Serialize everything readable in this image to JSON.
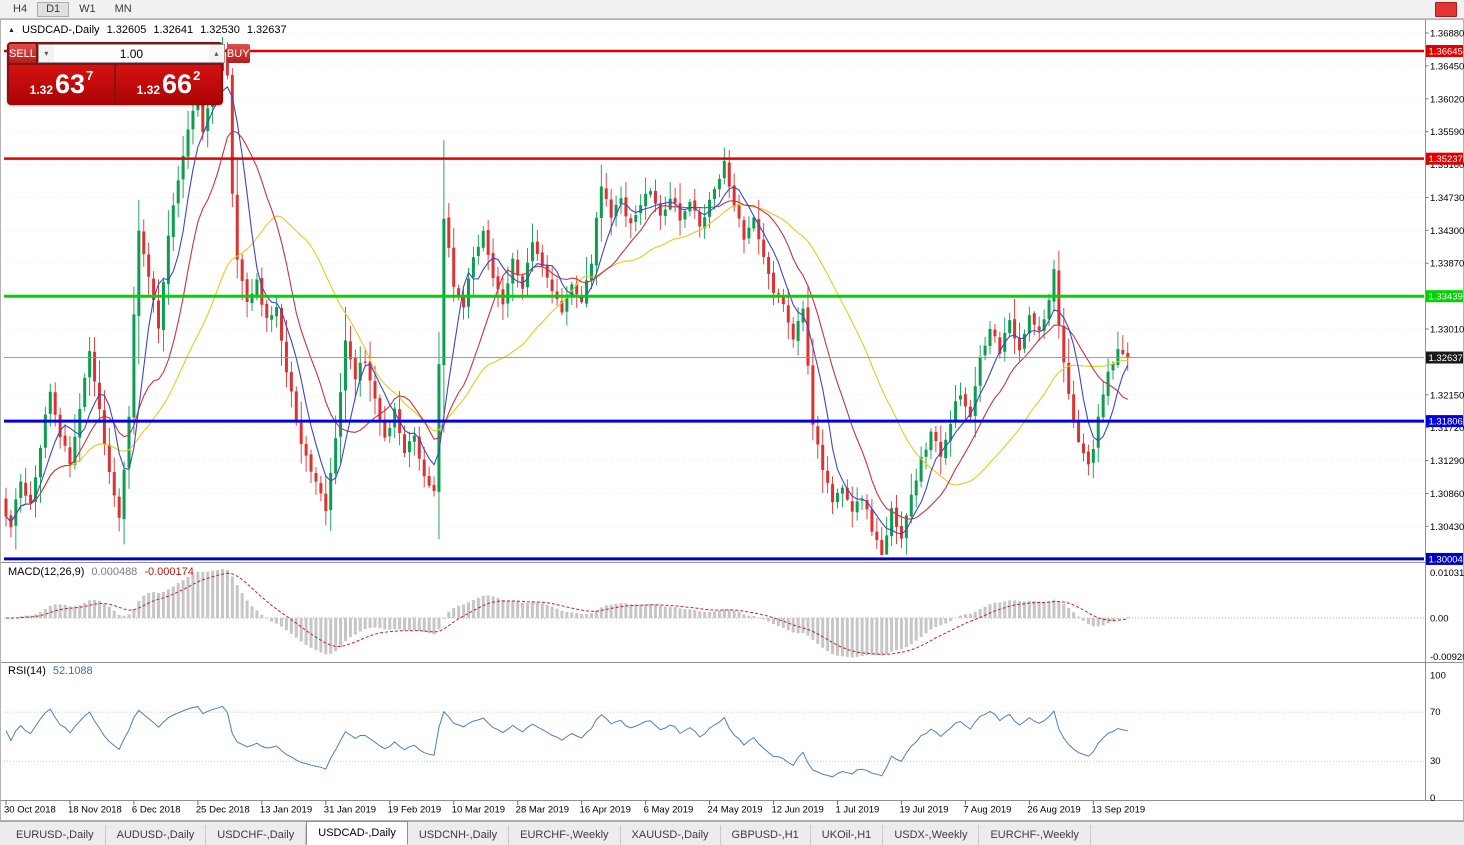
{
  "toolbar": {
    "timeframes": [
      "H4",
      "D1",
      "W1",
      "MN"
    ],
    "active": "D1"
  },
  "quote_header": {
    "symbol": "USDCAD-,Daily",
    "open": "1.32605",
    "high": "1.32641",
    "low": "1.32530",
    "close": "1.32637"
  },
  "trade_panel": {
    "sell_label": "SELL",
    "buy_label": "BUY",
    "volume": "1.00",
    "sell_price": {
      "prefix": "1.32",
      "big": "63",
      "sup": "7"
    },
    "buy_price": {
      "prefix": "1.32",
      "big": "66",
      "sup": "2"
    }
  },
  "macd_panel": {
    "label": "MACD(12,26,9)",
    "main_value": "0.000488",
    "signal_value": "-0.000174",
    "axis_labels": [
      "0.010311",
      "0.00",
      "-0.009203"
    ],
    "params": {
      "fast": 12,
      "slow": 26,
      "signal": 9
    }
  },
  "rsi_panel": {
    "label": "RSI(14)",
    "value": "52.1088",
    "period": 14,
    "axis_labels": [
      "100",
      "70",
      "30",
      "0"
    ],
    "levels": [
      70,
      30
    ]
  },
  "tabs": {
    "items": [
      "EURUSD-,Daily",
      "AUDUSD-,Daily",
      "USDCHF-,Daily",
      "USDCAD-,Daily",
      "USDCNH-,Daily",
      "EURCHF-,Weekly",
      "XAUUSD-,Daily",
      "GBPUSD-,H1",
      "UKOil-,H1",
      "USDX-,Weekly",
      "EURCHF-,Weekly"
    ],
    "active": "USDCAD-,Daily"
  },
  "chart_data": {
    "type": "candlestick",
    "symbol": "USDCAD",
    "timeframe": "Daily",
    "ohlc_current": {
      "open": 1.32605,
      "high": 1.32641,
      "low": 1.3253,
      "close": 1.32637
    },
    "price_axis": {
      "min": 1.2999,
      "max": 1.3705,
      "labels": [
        "1.36880",
        "1.36450",
        "1.36020",
        "1.35590",
        "1.35160",
        "1.34730",
        "1.34300",
        "1.33870",
        "1.33010",
        "1.32150",
        "1.31720",
        "1.31290",
        "1.30860",
        "1.30430"
      ]
    },
    "levels": [
      {
        "price": 1.36645,
        "label": "1.36645",
        "color": "#e00000",
        "width": 2.5
      },
      {
        "price": 1.35237,
        "label": "1.35237",
        "color": "#e00000",
        "width": 2.5
      },
      {
        "price": 1.33439,
        "label": "1.33439",
        "color": "#00d400",
        "width": 3
      },
      {
        "price": 1.31806,
        "label": "1.31806",
        "color": "#0000e0",
        "width": 3
      },
      {
        "price": 1.30004,
        "label": "1.30004",
        "color": "#0000c0",
        "width": 3
      }
    ],
    "current_price": {
      "value": 1.32637,
      "label": "1.32637",
      "color": "#1a1a1a"
    },
    "x_axis": {
      "ticks": [
        {
          "day": 0,
          "label": "30 Oct 2018"
        },
        {
          "day": 13,
          "label": "18 Nov 2018"
        },
        {
          "day": 26,
          "label": "6 Dec 2018"
        },
        {
          "day": 39,
          "label": "25 Dec 2018"
        },
        {
          "day": 52,
          "label": "13 Jan 2019"
        },
        {
          "day": 65,
          "label": "31 Jan 2019"
        },
        {
          "day": 78,
          "label": "19 Feb 2019"
        },
        {
          "day": 91,
          "label": "10 Mar 2019"
        },
        {
          "day": 104,
          "label": "28 Mar 2019"
        },
        {
          "day": 117,
          "label": "16 Apr 2019"
        },
        {
          "day": 130,
          "label": "6 May 2019"
        },
        {
          "day": 143,
          "label": "24 May 2019"
        },
        {
          "day": 156,
          "label": "12 Jun 2019"
        },
        {
          "day": 169,
          "label": "1 Jul 2019"
        },
        {
          "day": 182,
          "label": "19 Jul 2019"
        },
        {
          "day": 195,
          "label": "7 Aug 2019"
        },
        {
          "day": 208,
          "label": "26 Aug 2019"
        },
        {
          "day": 221,
          "label": "13 Sep 2019"
        }
      ]
    },
    "candles": {
      "count": 229,
      "slot_width": 4.92,
      "body_width": 3,
      "up_color": "#0a9e4e",
      "down_color": "#dd3232",
      "path_anchors": [
        [
          0,
          1.308
        ],
        [
          2,
          1.304
        ],
        [
          4,
          1.3105
        ],
        [
          6,
          1.3075
        ],
        [
          8,
          1.315
        ],
        [
          10,
          1.322
        ],
        [
          12,
          1.3165
        ],
        [
          14,
          1.3125
        ],
        [
          16,
          1.32
        ],
        [
          18,
          1.3268
        ],
        [
          20,
          1.319
        ],
        [
          22,
          1.311
        ],
        [
          24,
          1.306
        ],
        [
          26,
          1.318
        ],
        [
          27,
          1.332
        ],
        [
          28,
          1.3435
        ],
        [
          30,
          1.337
        ],
        [
          32,
          1.33
        ],
        [
          34,
          1.342
        ],
        [
          36,
          1.35
        ],
        [
          38,
          1.3555
        ],
        [
          40,
          1.3605
        ],
        [
          41,
          1.3555
        ],
        [
          43,
          1.3615
        ],
        [
          45,
          1.366
        ],
        [
          46,
          1.363
        ],
        [
          47,
          1.348
        ],
        [
          48,
          1.339
        ],
        [
          50,
          1.334
        ],
        [
          52,
          1.336
        ],
        [
          54,
          1.331
        ],
        [
          56,
          1.333
        ],
        [
          58,
          1.325
        ],
        [
          60,
          1.318
        ],
        [
          62,
          1.313
        ],
        [
          64,
          1.3095
        ],
        [
          66,
          1.3065
        ],
        [
          68,
          1.316
        ],
        [
          70,
          1.329
        ],
        [
          72,
          1.324
        ],
        [
          74,
          1.326
        ],
        [
          76,
          1.321
        ],
        [
          78,
          1.3165
        ],
        [
          80,
          1.319
        ],
        [
          82,
          1.314
        ],
        [
          84,
          1.3165
        ],
        [
          86,
          1.311
        ],
        [
          88,
          1.3085
        ],
        [
          89,
          1.326
        ],
        [
          90,
          1.345
        ],
        [
          92,
          1.336
        ],
        [
          94,
          1.333
        ],
        [
          96,
          1.34
        ],
        [
          98,
          1.343
        ],
        [
          100,
          1.337
        ],
        [
          102,
          1.333
        ],
        [
          104,
          1.3395
        ],
        [
          106,
          1.336
        ],
        [
          108,
          1.341
        ],
        [
          110,
          1.338
        ],
        [
          112,
          1.335
        ],
        [
          114,
          1.332
        ],
        [
          116,
          1.336
        ],
        [
          118,
          1.333
        ],
        [
          120,
          1.339
        ],
        [
          122,
          1.349
        ],
        [
          124,
          1.345
        ],
        [
          126,
          1.347
        ],
        [
          128,
          1.344
        ],
        [
          130,
          1.3465
        ],
        [
          132,
          1.3478
        ],
        [
          134,
          1.3445
        ],
        [
          136,
          1.3475
        ],
        [
          138,
          1.3445
        ],
        [
          140,
          1.347
        ],
        [
          142,
          1.344
        ],
        [
          144,
          1.3468
        ],
        [
          146,
          1.3495
        ],
        [
          147,
          1.3523
        ],
        [
          149,
          1.3465
        ],
        [
          151,
          1.342
        ],
        [
          153,
          1.3445
        ],
        [
          155,
          1.339
        ],
        [
          157,
          1.3355
        ],
        [
          159,
          1.333
        ],
        [
          161,
          1.329
        ],
        [
          163,
          1.333
        ],
        [
          165,
          1.318
        ],
        [
          167,
          1.312
        ],
        [
          169,
          1.3075
        ],
        [
          171,
          1.3095
        ],
        [
          173,
          1.306
        ],
        [
          175,
          1.3082
        ],
        [
          177,
          1.3035
        ],
        [
          179,
          1.3012
        ],
        [
          181,
          1.306
        ],
        [
          183,
          1.303
        ],
        [
          185,
          1.308
        ],
        [
          187,
          1.313
        ],
        [
          189,
          1.3165
        ],
        [
          191,
          1.314
        ],
        [
          193,
          1.318
        ],
        [
          195,
          1.322
        ],
        [
          197,
          1.319
        ],
        [
          199,
          1.326
        ],
        [
          201,
          1.33
        ],
        [
          203,
          1.327
        ],
        [
          205,
          1.331
        ],
        [
          207,
          1.328
        ],
        [
          209,
          1.332
        ],
        [
          211,
          1.33
        ],
        [
          213,
          1.334
        ],
        [
          214,
          1.3378
        ],
        [
          215,
          1.33
        ],
        [
          217,
          1.322
        ],
        [
          219,
          1.315
        ],
        [
          221,
          1.3118
        ],
        [
          223,
          1.318
        ],
        [
          225,
          1.324
        ],
        [
          227,
          1.327
        ],
        [
          228,
          1.3264
        ]
      ]
    },
    "moving_averages": [
      {
        "period": 6,
        "color": "#3c47c8"
      },
      {
        "period": 14,
        "color": "#c83248"
      },
      {
        "period": 30,
        "color": "#e3cc1c"
      }
    ],
    "macd": {
      "histogram_color": "#c6c6c6",
      "signal_color": "#d02020"
    },
    "rsi": {
      "line_color": "#4a80c0"
    }
  }
}
